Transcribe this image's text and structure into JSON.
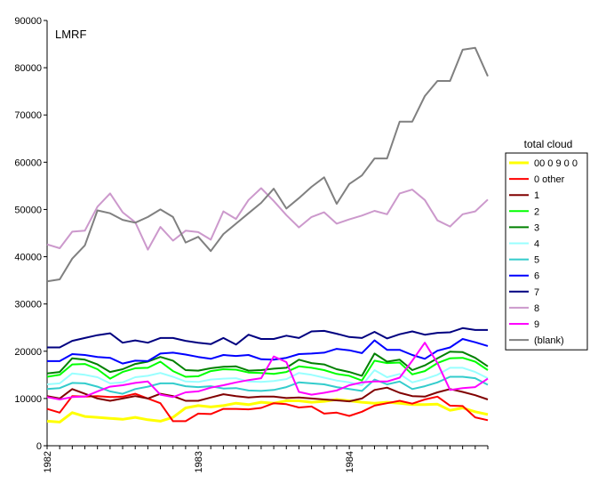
{
  "chart_data": {
    "type": "line",
    "title": "LMRF",
    "xlabel": "",
    "ylabel": "",
    "ylim": [
      0,
      90000
    ],
    "yticks": [
      "0",
      "10000",
      "20000",
      "30000",
      "40000",
      "50000",
      "60000",
      "70000",
      "80000",
      "90000"
    ],
    "x_points": 36,
    "xticks": [
      {
        "index": 0,
        "label": "1982"
      },
      {
        "index": 12,
        "label": "1983"
      },
      {
        "index": 24,
        "label": "1984"
      }
    ],
    "grid": false,
    "legend": {
      "title": "total cloud",
      "position": "right"
    },
    "series": [
      {
        "name": "00 0 9 0 0",
        "color": "#ffff00",
        "width": 3,
        "values": [
          5200,
          5000,
          7000,
          6200,
          6000,
          5800,
          5600,
          6000,
          5500,
          5200,
          6000,
          8000,
          8500,
          8200,
          8500,
          9000,
          8700,
          9200,
          9000,
          9500,
          9500,
          9200,
          9400,
          9800,
          9500,
          9200,
          9000,
          9200,
          9000,
          8700,
          8700,
          8800,
          7500,
          8000,
          7200,
          6600
        ]
      },
      {
        "name": "0 other",
        "color": "#ff0000",
        "width": 2,
        "values": [
          7800,
          7000,
          10500,
          10400,
          10500,
          10300,
          10400,
          11000,
          10000,
          9000,
          5200,
          5200,
          6800,
          6700,
          7800,
          7800,
          7700,
          8000,
          9000,
          8800,
          8100,
          8300,
          6800,
          7000,
          6300,
          7200,
          8500,
          9000,
          9500,
          8900,
          9800,
          10400,
          8500,
          8400,
          6000,
          5400
        ]
      },
      {
        "name": "1",
        "color": "#800000",
        "width": 2,
        "values": [
          10500,
          10000,
          12000,
          11000,
          10000,
          9500,
          10000,
          10500,
          10000,
          11000,
          10500,
          9500,
          9500,
          10200,
          10900,
          10500,
          10200,
          10400,
          10400,
          10100,
          10200,
          10000,
          9800,
          9600,
          9400,
          10000,
          11800,
          12300,
          11200,
          10500,
          10400,
          11300,
          12000,
          11400,
          10700,
          9800
        ]
      },
      {
        "name": "2",
        "color": "#00ff00",
        "width": 2,
        "values": [
          14600,
          15000,
          17200,
          17300,
          16200,
          14200,
          15600,
          16400,
          16500,
          17800,
          15800,
          14600,
          14700,
          15800,
          16200,
          16100,
          15500,
          15400,
          15200,
          15600,
          16800,
          16500,
          16000,
          15200,
          14800,
          13800,
          18000,
          17500,
          17600,
          15100,
          15800,
          17500,
          18500,
          18600,
          17800,
          16000
        ]
      },
      {
        "name": "3",
        "color": "#008000",
        "width": 2,
        "values": [
          15300,
          15600,
          18500,
          18200,
          17200,
          15600,
          16200,
          17300,
          17800,
          18800,
          18000,
          16000,
          15900,
          16400,
          16700,
          16800,
          15900,
          16000,
          16300,
          16500,
          18200,
          17500,
          17200,
          16200,
          15600,
          14800,
          19500,
          17800,
          18200,
          16000,
          17000,
          18500,
          19900,
          19800,
          18600,
          16800
        ]
      },
      {
        "name": "4",
        "color": "#99ffff",
        "width": 2,
        "values": [
          13000,
          13200,
          15300,
          15000,
          14500,
          13200,
          13400,
          14500,
          14800,
          15400,
          14600,
          13600,
          13500,
          14000,
          14200,
          14300,
          13600,
          13500,
          13700,
          14100,
          15400,
          15000,
          14400,
          13800,
          13400,
          12800,
          16000,
          14500,
          15200,
          13400,
          14100,
          15000,
          16500,
          16500,
          15600,
          14300
        ]
      },
      {
        "name": "5",
        "color": "#33cccc",
        "width": 2,
        "values": [
          12000,
          12200,
          13300,
          13200,
          12500,
          11500,
          11000,
          12000,
          12500,
          13200,
          13200,
          12600,
          12400,
          12600,
          12100,
          12200,
          11700,
          11600,
          11800,
          12400,
          13400,
          13200,
          13000,
          12400,
          12000,
          11600,
          14000,
          13000,
          13600,
          12000,
          12600,
          13400,
          14600,
          14600,
          14300,
          12900
        ]
      },
      {
        "name": "6",
        "color": "#0000ff",
        "width": 2,
        "values": [
          17900,
          17900,
          19400,
          19200,
          18800,
          18600,
          17400,
          18000,
          17900,
          19500,
          19700,
          19300,
          18800,
          18400,
          19200,
          19000,
          19200,
          18300,
          18200,
          18600,
          19400,
          19500,
          19700,
          20500,
          20200,
          19600,
          22300,
          20300,
          20300,
          19200,
          18400,
          20100,
          20800,
          22600,
          21900,
          21100
        ]
      },
      {
        "name": "7",
        "color": "#000080",
        "width": 2,
        "values": [
          20800,
          20800,
          22200,
          22800,
          23400,
          23800,
          21800,
          22300,
          21800,
          22800,
          22800,
          22200,
          21800,
          21500,
          22800,
          21400,
          23500,
          22600,
          22600,
          23300,
          22800,
          24200,
          24300,
          23700,
          23000,
          22800,
          24100,
          22700,
          23600,
          24200,
          23500,
          23900,
          24000,
          24900,
          24500,
          24500
        ]
      },
      {
        "name": "8",
        "color": "#cc99cc",
        "width": 2,
        "values": [
          42600,
          41800,
          45300,
          45500,
          50600,
          53400,
          49400,
          47300,
          41500,
          46300,
          43400,
          45500,
          45200,
          43600,
          49600,
          48000,
          52000,
          54500,
          51800,
          48800,
          46200,
          48400,
          49400,
          47000,
          47900,
          48700,
          49700,
          49000,
          53400,
          54200,
          52000,
          47700,
          46400,
          49000,
          49600,
          52100
        ]
      },
      {
        "name": "9",
        "color": "#ff00ff",
        "width": 2,
        "values": [
          10300,
          9800,
          10300,
          10400,
          11500,
          12500,
          12800,
          13300,
          13600,
          10800,
          10300,
          11300,
          11500,
          12300,
          12800,
          13400,
          13900,
          14300,
          18900,
          17700,
          11400,
          10800,
          11200,
          11700,
          12800,
          13400,
          13600,
          13600,
          14400,
          18000,
          21800,
          17500,
          11800,
          12200,
          12400,
          14200
        ]
      },
      {
        "name": "(blank)",
        "color": "#808080",
        "width": 2,
        "values": [
          34800,
          35200,
          39600,
          42400,
          49800,
          49200,
          47800,
          47200,
          48400,
          50000,
          48400,
          43000,
          44200,
          41200,
          44800,
          47000,
          49200,
          51400,
          54400,
          50200,
          52400,
          54800,
          56800,
          51200,
          55400,
          57200,
          60800,
          60800,
          68600,
          68600,
          74000,
          77200,
          77200,
          83800,
          84200,
          78200
        ]
      }
    ]
  }
}
